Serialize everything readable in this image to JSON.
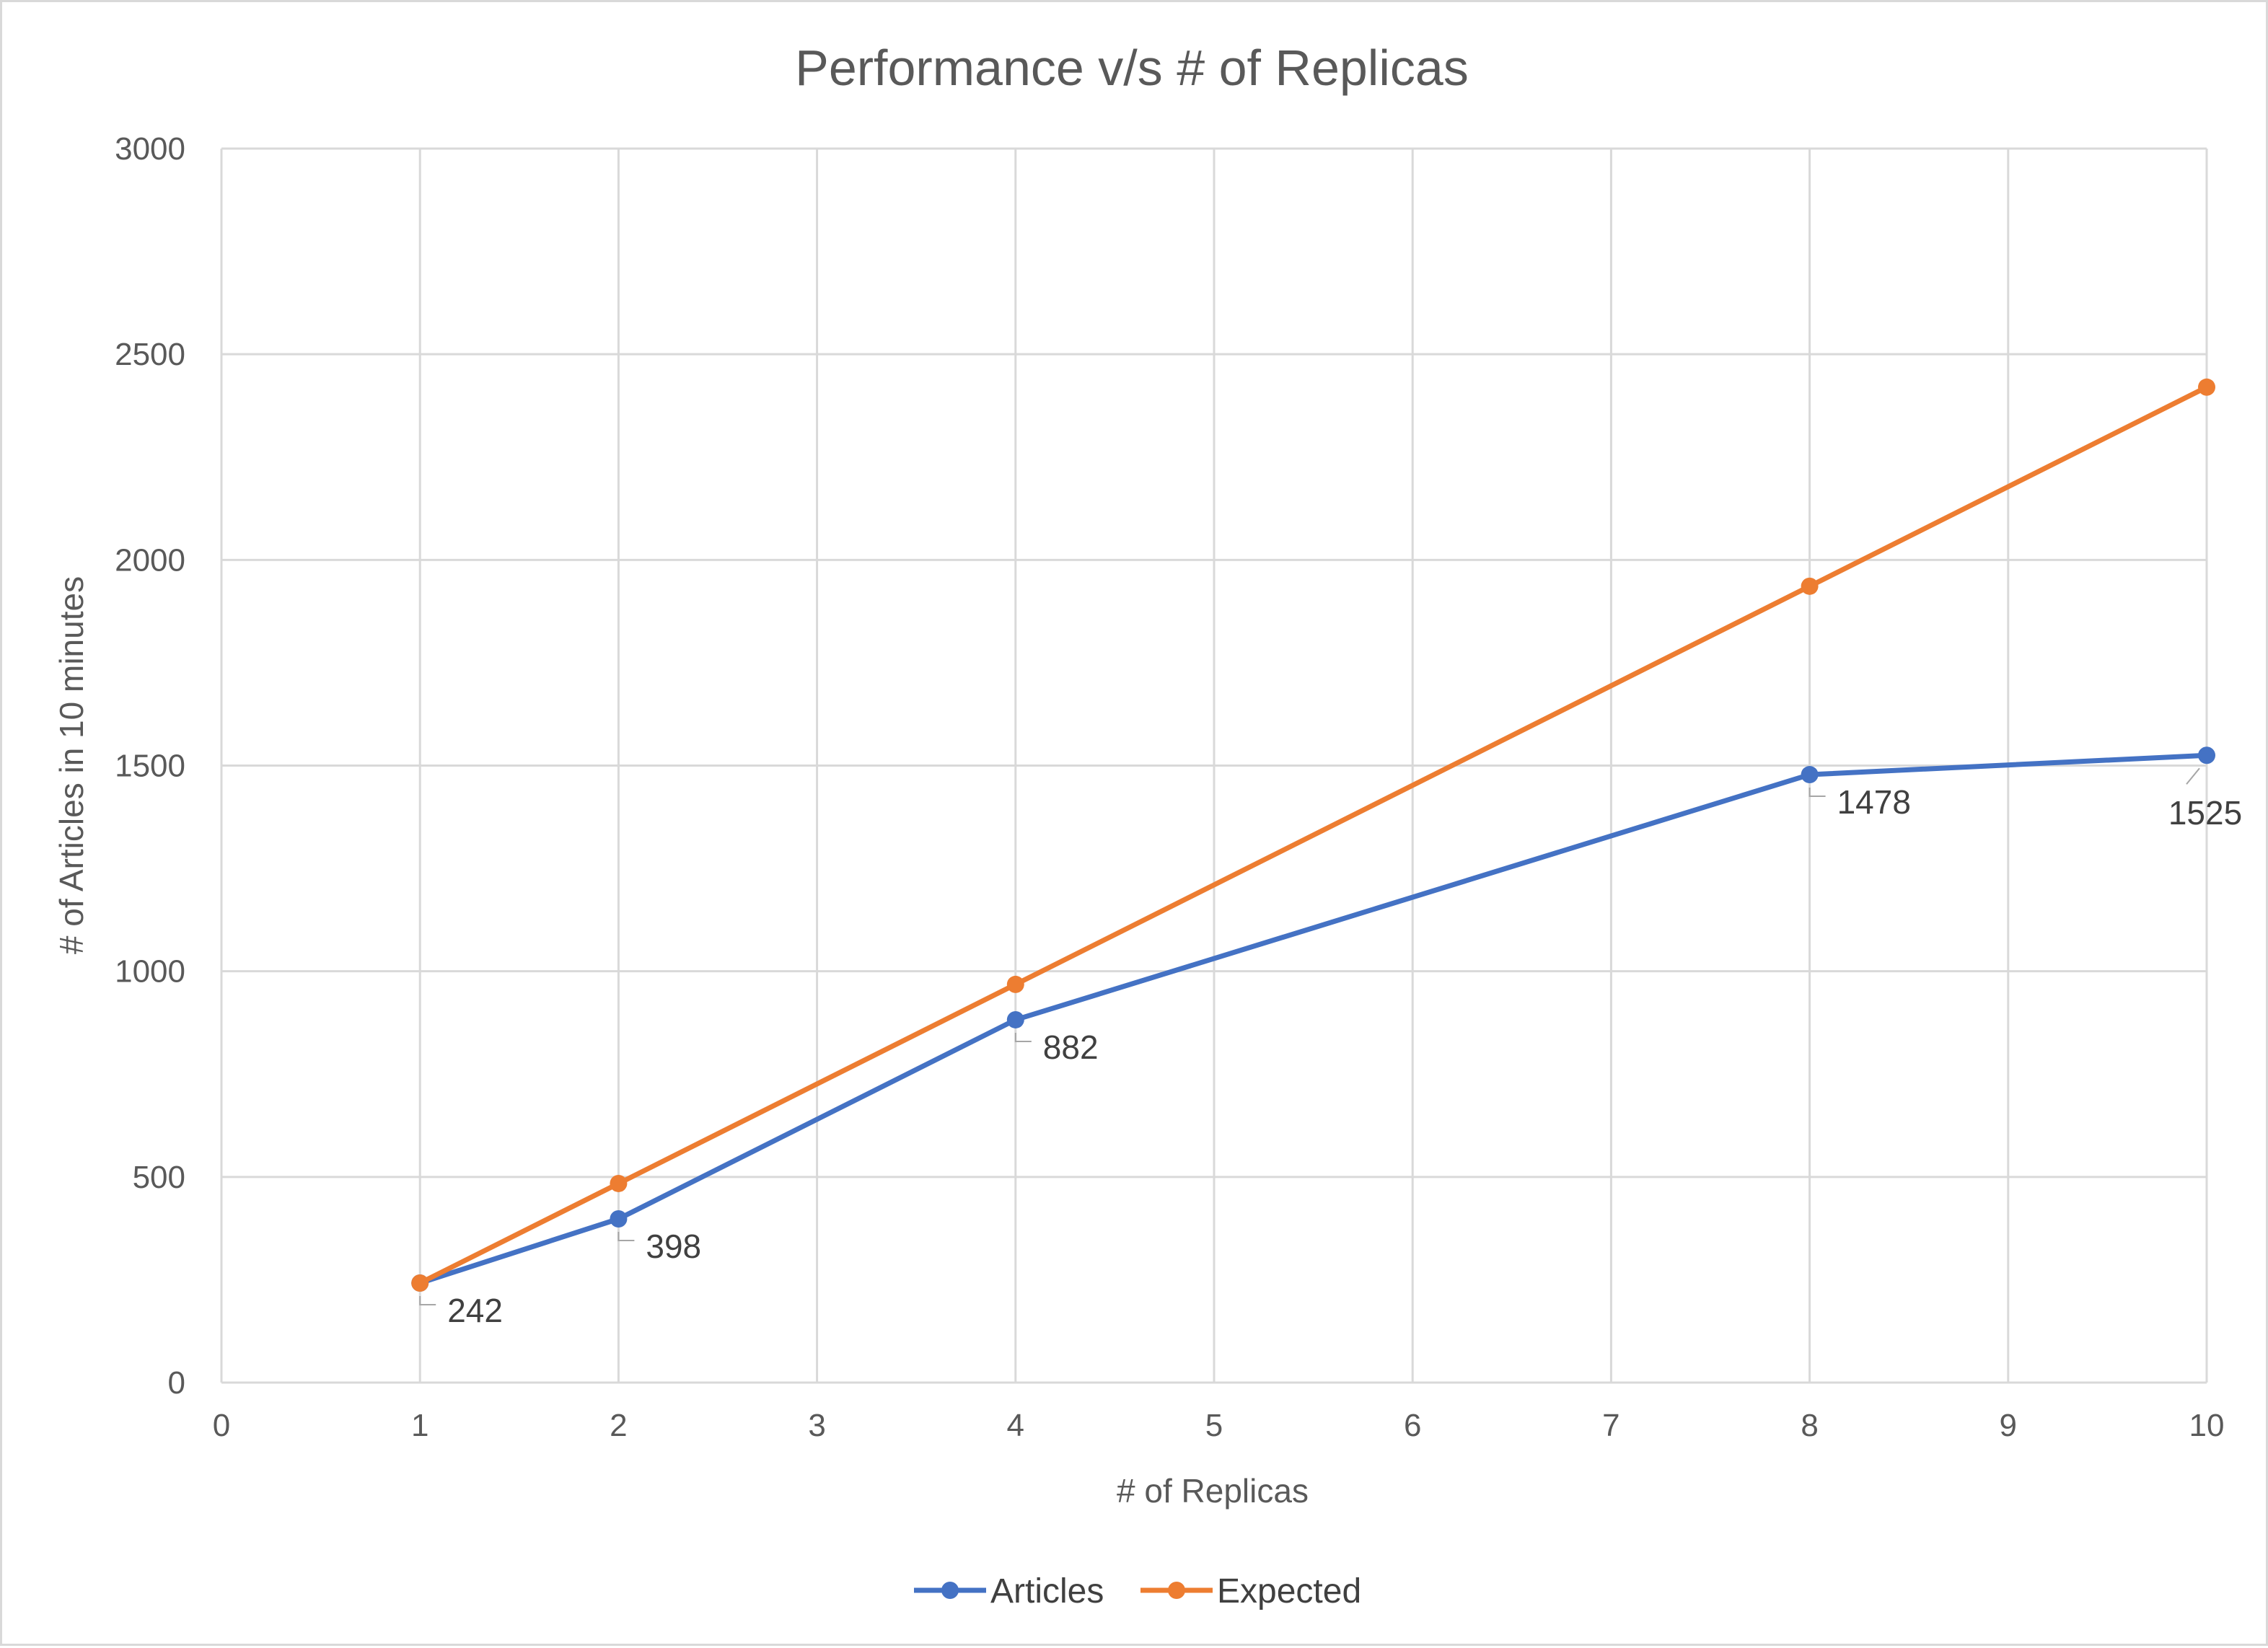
{
  "chart_data": {
    "type": "line",
    "title": "Performance v/s # of Replicas",
    "xlabel": "# of Replicas",
    "ylabel": "# of Articles in 10 minutes",
    "xlim": [
      0,
      10
    ],
    "ylim": [
      0,
      3000
    ],
    "x_ticks": [
      "0",
      "1",
      "2",
      "3",
      "4",
      "5",
      "6",
      "7",
      "8",
      "9",
      "10"
    ],
    "y_ticks": [
      "0",
      "500",
      "1000",
      "1500",
      "2000",
      "2500",
      "3000"
    ],
    "grid": true,
    "legend_position": "bottom",
    "series": [
      {
        "name": "Articles",
        "color": "#4472c4",
        "x": [
          1,
          2,
          4,
          8,
          10
        ],
        "values": [
          242,
          398,
          882,
          1478,
          1525
        ],
        "data_labels": [
          "242",
          "398",
          "882",
          "1478",
          "1525"
        ]
      },
      {
        "name": "Expected",
        "color": "#ed7d31",
        "x": [
          1,
          2,
          4,
          8,
          10
        ],
        "values": [
          242,
          484,
          968,
          1936,
          2420
        ]
      }
    ]
  }
}
